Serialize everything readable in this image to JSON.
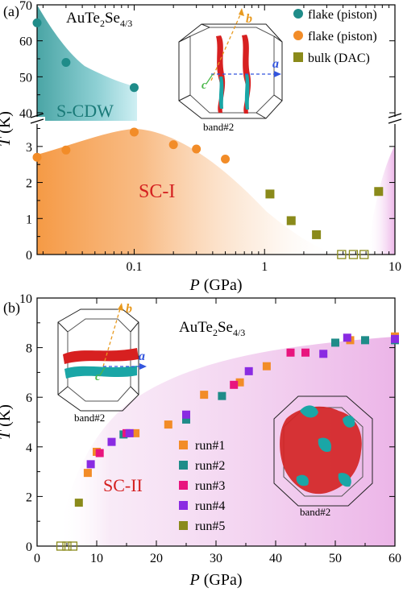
{
  "chart_data": [
    {
      "panel_label": "(a)",
      "type": "scatter",
      "title": "AuTe2Se4/3",
      "title_main": "AuTe",
      "title_sub1": "2",
      "title_mid": "Se",
      "title_sub2": "4/3",
      "xlabel": "P (GPa)",
      "xlabel_main": "P",
      "xlabel_unit": " (GPa)",
      "ylabel": "T (K)",
      "ylabel_main": "T",
      "ylabel_unit": " (K)",
      "x_scale": "log",
      "xlim": [
        0.018,
        10
      ],
      "x_ticks": [
        "0.1",
        "1",
        "10"
      ],
      "y_axis_break": true,
      "ylim_upper": [
        40,
        70
      ],
      "ylim_lower": [
        0,
        3.6
      ],
      "y_ticks_upper": [
        "40",
        "50",
        "60",
        "70"
      ],
      "y_ticks_lower": [
        "0",
        "1",
        "2",
        "3"
      ],
      "region_labels": {
        "scdw": "S-CDW",
        "sc": "SC-I"
      },
      "inset_label": "band#2",
      "inset_axis_a": "a",
      "inset_axis_b": "b",
      "inset_axis_c": "c",
      "legend_position": "top-right",
      "series": [
        {
          "name": "flake (piston)",
          "marker": "circle",
          "color": "#1f8c89",
          "points": [
            [
              0.018,
              65
            ],
            [
              0.03,
              54
            ],
            [
              0.1,
              47
            ]
          ]
        },
        {
          "name": "flake (piston)",
          "marker": "circle",
          "color": "#f28c28",
          "points": [
            [
              0.018,
              2.7
            ],
            [
              0.03,
              2.9
            ],
            [
              0.1,
              3.4
            ],
            [
              0.2,
              3.05
            ],
            [
              0.3,
              2.93
            ],
            [
              0.5,
              2.65
            ]
          ]
        },
        {
          "name": "bulk (DAC)",
          "marker": "square",
          "color": "#8a8a1a",
          "points": [
            [
              1.1,
              1.68
            ],
            [
              1.6,
              0.94
            ],
            [
              2.5,
              0.55
            ],
            [
              7.5,
              1.75
            ]
          ]
        },
        {
          "name": "bulk (DAC)",
          "marker": "open-square",
          "color": "#8a8a1a",
          "points": [
            [
              3.9,
              0
            ],
            [
              4.8,
              0
            ],
            [
              5.8,
              0
            ]
          ]
        }
      ],
      "legend": [
        {
          "name": "flake (piston)",
          "marker": "circle",
          "color": "#1f8c89"
        },
        {
          "name": "flake (piston)",
          "marker": "circle",
          "color": "#f28c28"
        },
        {
          "name": "bulk (DAC)",
          "marker": "square",
          "color": "#8a8a1a"
        }
      ]
    },
    {
      "panel_label": "(b)",
      "type": "scatter",
      "title": "AuTe2Se4/3",
      "title_main": "AuTe",
      "title_sub1": "2",
      "title_mid": "Se",
      "title_sub2": "4/3",
      "xlabel": "P (GPa)",
      "xlabel_main": "P",
      "xlabel_unit": " (GPa)",
      "ylabel": "T (K)",
      "ylabel_main": "T",
      "ylabel_unit": " (K)",
      "xlim": [
        0,
        60
      ],
      "ylim": [
        0,
        10
      ],
      "x_ticks": [
        "0",
        "10",
        "20",
        "30",
        "40",
        "50",
        "60"
      ],
      "y_ticks": [
        "0",
        "2",
        "4",
        "6",
        "8",
        "10"
      ],
      "region_label": "SC-II",
      "inset_label_left": "band#2",
      "inset_label_right": "band#2",
      "inset_axis_a": "a",
      "inset_axis_b": "b",
      "inset_axis_c": "c",
      "legend_position": "center",
      "series": [
        {
          "name": "run#1",
          "marker": "square",
          "color": "#f28c28",
          "points": [
            [
              8.5,
              2.95
            ],
            [
              10,
              3.8
            ],
            [
              16.5,
              4.55
            ],
            [
              22,
              4.9
            ],
            [
              28,
              6.1
            ],
            [
              34,
              6.6
            ],
            [
              38.5,
              7.25
            ],
            [
              52.5,
              8.3
            ],
            [
              60,
              8.45
            ]
          ]
        },
        {
          "name": "run#2",
          "marker": "square",
          "color": "#1f8c89",
          "points": [
            [
              14.5,
              4.5
            ],
            [
              25,
              5.1
            ],
            [
              31,
              6.05
            ],
            [
              50,
              8.2
            ],
            [
              55,
              8.3
            ],
            [
              60,
              8.3
            ]
          ]
        },
        {
          "name": "run#3",
          "marker": "square",
          "color": "#e8157e",
          "points": [
            [
              10.5,
              3.75
            ],
            [
              15,
              4.55
            ],
            [
              33,
              6.5
            ],
            [
              42.5,
              7.8
            ],
            [
              45,
              7.8
            ]
          ]
        },
        {
          "name": "run#4",
          "marker": "square",
          "color": "#8a2be2",
          "points": [
            [
              9,
              3.3
            ],
            [
              12.5,
              4.2
            ],
            [
              15.5,
              4.55
            ],
            [
              25,
              5.3
            ],
            [
              35.5,
              7.05
            ],
            [
              48,
              7.75
            ],
            [
              52,
              8.4
            ],
            [
              60,
              8.35
            ]
          ]
        },
        {
          "name": "run#5",
          "marker": "square",
          "color": "#8a8a1a",
          "points": [
            [
              7,
              1.75
            ]
          ]
        },
        {
          "name": "run#5",
          "marker": "open-square",
          "color": "#8a8a1a",
          "points": [
            [
              4,
              0
            ],
            [
              5,
              0
            ],
            [
              6,
              0
            ]
          ]
        }
      ],
      "legend": [
        {
          "name": "run#1",
          "color": "#f28c28"
        },
        {
          "name": "run#2",
          "color": "#1f8c89"
        },
        {
          "name": "run#3",
          "color": "#e8157e"
        },
        {
          "name": "run#4",
          "color": "#8a2be2"
        },
        {
          "name": "run#5",
          "color": "#8a8a1a"
        }
      ]
    }
  ],
  "colors": {
    "teal": "#1f8c89",
    "orange": "#f28c28",
    "olive": "#8a8a1a",
    "magenta": "#e8157e",
    "purple": "#8a2be2",
    "region_scdw": "#5fb3b3",
    "region_sc1": "#f7a45a",
    "region_sc2": "#f0c6ee",
    "region_label_red": "#d42020",
    "axis_a_blue": "#3355dd",
    "axis_b_orange": "#e89a20",
    "axis_c_green": "#4ab84a"
  }
}
